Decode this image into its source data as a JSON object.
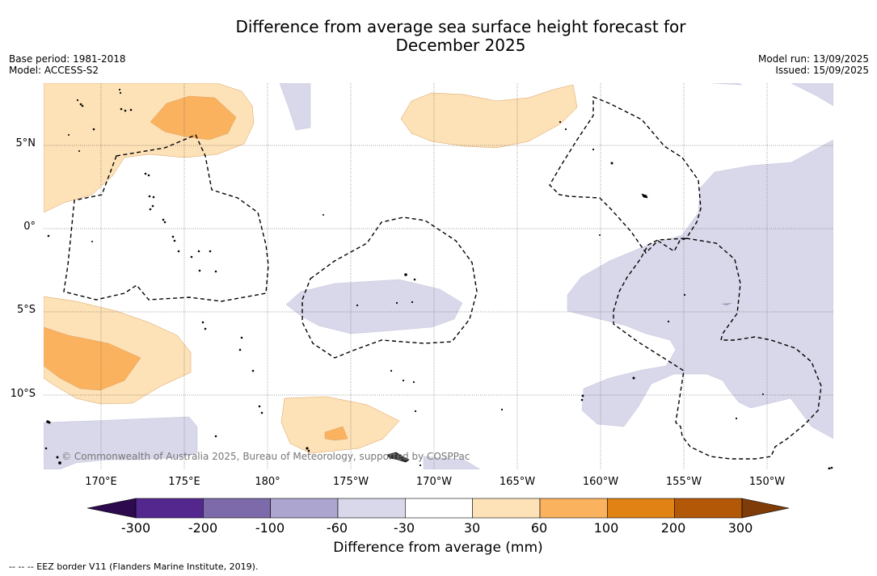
{
  "title_line1": "Difference from average sea surface height forecast for",
  "title_line2": "December 2025",
  "meta_left": {
    "base_period": "Base period: 1981-2018",
    "model": "Model: ACCESS-S2"
  },
  "meta_right": {
    "model_run": "Model run: 13/09/2025",
    "issued": "Issued: 15/09/2025"
  },
  "map": {
    "latitude_labels": [
      "5°N",
      "0°",
      "5°S",
      "10°S"
    ],
    "longitude_labels": [
      "170°E",
      "175°E",
      "180°",
      "175°W",
      "170°W",
      "165°W",
      "160°W",
      "155°W",
      "150°W"
    ],
    "watermark": "© Commonwealth of Australia 2025, Bureau of Meteorology, supported by COSPPac",
    "colors": {
      "positive_light": "#fde1b7",
      "positive_mid": "#fbb25f",
      "negative_light": "#d8d8ea",
      "land": "#000000"
    }
  },
  "colorbar": {
    "tick_labels": [
      "-300",
      "-200",
      "-100",
      "-60",
      "-30",
      "30",
      "60",
      "100",
      "200",
      "300"
    ],
    "colors": [
      "#2d0a4d",
      "#54278f",
      "#7c6aaa",
      "#aba5cf",
      "#d8d8ea",
      "#ffffff",
      "#fde1b7",
      "#fbb25f",
      "#e08214",
      "#b35806",
      "#7f3b08"
    ],
    "title": "Difference from average (mm)"
  },
  "footnote": "-- -- -- EEZ border V11 (Flanders Marine Institute, 2019)."
}
